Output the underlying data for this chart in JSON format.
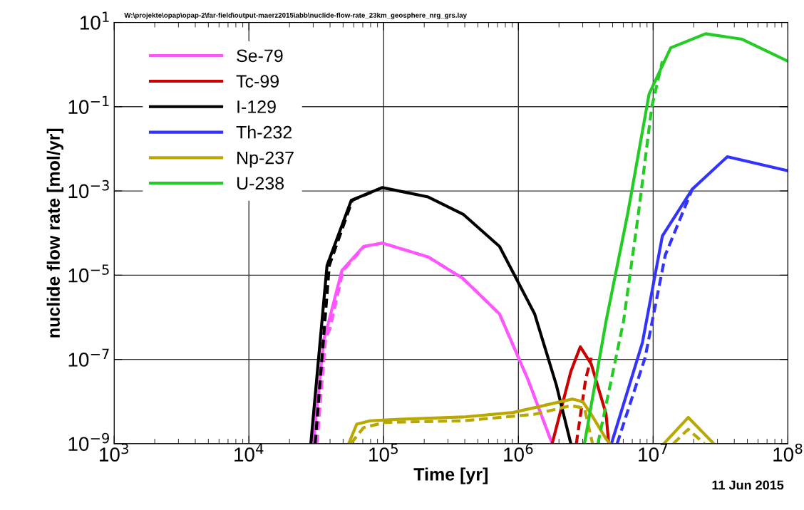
{
  "chart_data": {
    "type": "line",
    "xlabel": "Time [yr]",
    "ylabel": "nuclide flow rate [mol/yr]",
    "log": "xy",
    "grid": true,
    "legend": "top left",
    "marker": "none",
    "xlim": [
      1000,
      100000000
    ],
    "xticks": [
      {
        "value": 1000,
        "label": "10$^{3}$"
      },
      {
        "value": 10000,
        "label": "10$^{4}$"
      },
      {
        "value": 100000,
        "label": "10$^{5}$"
      },
      {
        "value": 1000000,
        "label": "10$^{6}$"
      },
      {
        "value": 10000000,
        "label": "10$^{7}$"
      },
      {
        "value": 100000000,
        "label": "10$^{8}$"
      }
    ],
    "ylim": [
      1e-09,
      10
    ],
    "yticks": [
      {
        "value": 10,
        "label": "10$^{1}$"
      },
      {
        "value": 0.1,
        "label": "10$^{−1}$"
      },
      {
        "value": 0.001,
        "label": "10$^{−3}$"
      },
      {
        "value": 1e-05,
        "label": "10$^{−5}$"
      },
      {
        "value": 1e-07,
        "label": "10$^{−7}$"
      },
      {
        "value": 1e-09,
        "label": "10$^{−9}$"
      }
    ],
    "annotations": [
      "W:\\projekte\\opap\\opap-2\\far-field\\output-maerz2015\\abb\\nuclide-flow-rate_23km_geosphere_nrg_grs.lay",
      "11 Jun 2015"
    ],
    "series": [
      {
        "name": "Se-79",
        "color": "#ff55ff",
        "line_style": "solid",
        "x": [
          30000,
          36000,
          38000,
          49000,
          70800,
          97700,
          214000,
          389000,
          724000,
          1170000,
          1780000
        ],
        "values": [
          1e-09,
          3e-07,
          5.5e-07,
          1.3e-05,
          4.8e-05,
          5.8e-05,
          2.7e-05,
          8.3e-06,
          1.2e-06,
          3.5e-08,
          1e-09
        ]
      },
      {
        "color": "#ff55ff",
        "line_style": "dashed",
        "x": [
          32000,
          37000,
          40000,
          50000,
          72000,
          97700,
          214000,
          389000,
          724000,
          1170000,
          1780000
        ],
        "values": [
          1e-09,
          3e-07,
          5.5e-07,
          1.3e-05,
          4.8e-05,
          5.8e-05,
          2.7e-05,
          8.3e-06,
          1.2e-06,
          3.5e-08,
          1e-09
        ]
      },
      {
        "name": "Tc-99",
        "color": "#cc0000",
        "line_style": "solid",
        "x": [
          1780000,
          2450000,
          2880000,
          3470000,
          4470000,
          4680000
        ],
        "values": [
          1e-09,
          5.2e-08,
          2e-07,
          7.8e-08,
          5.1e-09,
          1e-09
        ]
      },
      {
        "color": "#cc0000",
        "line_style": "dashed",
        "x": [
          2690000,
          3160000,
          3470000
        ],
        "values": [
          1e-09,
          3.5e-08,
          1.1e-07
        ]
      },
      {
        "name": "I-129",
        "color": "#000000",
        "line_style": "solid",
        "x": [
          28800,
          38000,
          57500,
          97700,
          214000,
          389000,
          724000,
          1320000,
          1910000,
          2450000
        ],
        "values": [
          1e-09,
          1.7e-05,
          0.0006,
          0.0012,
          0.00072,
          0.00028,
          4.8e-05,
          1.2e-06,
          2.5e-08,
          1e-09
        ]
      },
      {
        "color": "#000000",
        "line_style": "dashed",
        "x": [
          31000,
          39500,
          58500,
          97700
        ],
        "values": [
          1e-09,
          1.7e-05,
          0.0006,
          0.0012
        ]
      },
      {
        "name": "Th-232",
        "color": "#3333ff",
        "line_style": "solid",
        "x": [
          4900000,
          8320000,
          11700000,
          19500000,
          35500000,
          100000000
        ],
        "values": [
          1e-09,
          2.5e-07,
          8.5e-05,
          0.0011,
          0.0065,
          0.003
        ]
      },
      {
        "color": "#3333ff",
        "line_style": "dashed",
        "x": [
          5400000,
          8710000,
          12300000,
          19500000
        ],
        "values": [
          1e-09,
          1.1e-07,
          3e-05,
          0.0011
        ]
      },
      {
        "name": "Np-237",
        "color": "#b8a800",
        "line_style": "solid",
        "x": [
          55000,
          63100,
          79400,
          132000,
          389000,
          912000,
          2510000,
          3000000,
          3470000,
          4470000,
          4790000,
          null,
          12000000,
          18200000,
          28200000
        ],
        "values": [
          1e-09,
          2.9e-09,
          3.5e-09,
          3.8e-09,
          4.3e-09,
          5.5e-09,
          1.15e-08,
          1e-08,
          5e-09,
          1.3e-09,
          1e-09,
          null,
          1e-09,
          4.2e-09,
          1e-09
        ]
      },
      {
        "color": "#b8a800",
        "line_style": "dashed",
        "x": [
          57000,
          70800,
          102000,
          389000,
          1320000,
          2450000,
          3090000,
          3550000,
          null,
          14100000,
          18200000,
          24000000
        ],
        "values": [
          1e-09,
          2.4e-09,
          3.2e-09,
          3.5e-09,
          5e-09,
          8e-09,
          7e-09,
          1e-09,
          null,
          1e-09,
          2.2e-09,
          1e-09
        ]
      },
      {
        "name": "U-238",
        "color": "#22cc22",
        "line_style": "solid",
        "x": [
          3090000,
          4470000,
          6460000,
          9330000,
          13500000,
          24500000,
          45700000,
          100000000
        ],
        "values": [
          1e-09,
          8.1e-07,
          0.00028,
          0.2,
          2.5,
          5.4,
          4,
          1.2
        ]
      },
      {
        "color": "#22cc22",
        "line_style": "dashed",
        "x": [
          3890000,
          6030000,
          7760000,
          9770000,
          11700000
        ],
        "values": [
          1e-09,
          8.1e-07,
          0.00028,
          0.1,
          1.2
        ]
      }
    ]
  }
}
